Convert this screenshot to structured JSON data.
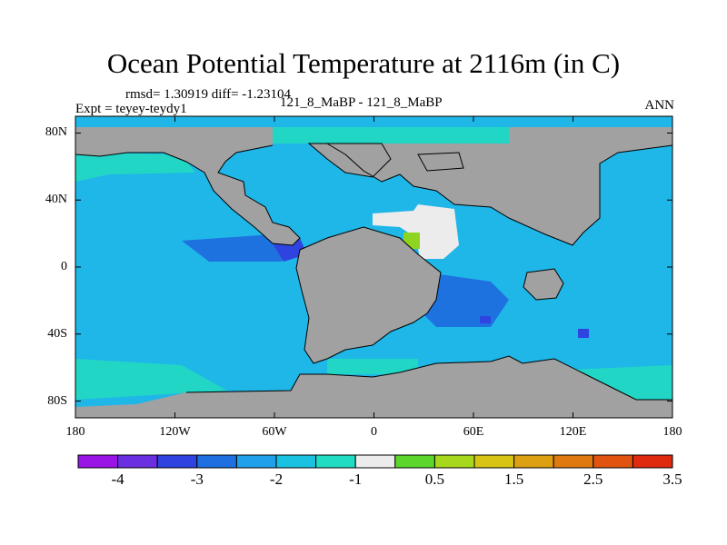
{
  "title": "Ocean Potential Temperature at 2116m (in C)",
  "stats_line": "rmsd= 1.30919 diff= -1.23104",
  "experiment_line": "Expt = teyey-teydy1",
  "experiment_names": "121_8_MaBP - 121_8_MaBP",
  "season": "ANN",
  "lat_labels": [
    "80N",
    "40N",
    "0",
    "40S",
    "80S"
  ],
  "lat_values": [
    80,
    40,
    0,
    -40,
    -80
  ],
  "lon_labels": [
    "180",
    "120W",
    "60W",
    "0",
    "60E",
    "120E",
    "180"
  ],
  "lon_values": [
    -180,
    -120,
    -60,
    0,
    60,
    120,
    180
  ],
  "colorbar": {
    "colors": [
      "#9a14e6",
      "#6a2fe0",
      "#2f43e0",
      "#1e6fe0",
      "#1fa0e8",
      "#19c2e0",
      "#20dcc2",
      "#ececec",
      "#5cd62a",
      "#a7d81c",
      "#d8c414",
      "#dca012",
      "#e07a10",
      "#e05410",
      "#e02a10"
    ],
    "tick_labels": [
      "-4",
      "-3",
      "-2",
      "-1",
      "0.5",
      "1.5",
      "2.5",
      "3.5"
    ],
    "tick_values": [
      -4,
      -3,
      -2,
      -1,
      0.5,
      1.5,
      2.5,
      3.5
    ]
  },
  "map_colors": {
    "land": "#a1a1a1",
    "ocean_main": "#1fb6e8",
    "ocean_warm": "#22d6c6",
    "ocean_cold": "#1e72e0",
    "ocean_deep_cold": "#2f43e0",
    "ocean_near_zero": "#ececec",
    "ocean_positive": "#8ed420",
    "coast": "#000000"
  }
}
